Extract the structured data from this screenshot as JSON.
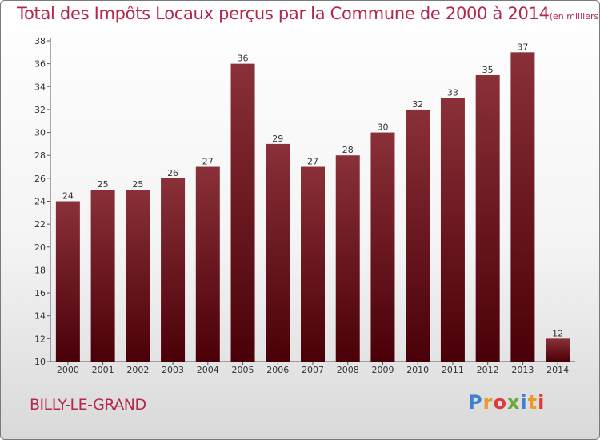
{
  "title": "Total des Impôts Locaux perçus par la Commune de 2000 à 2014",
  "unit": "(en milliers d'€)",
  "commune": "BILLY-LE-GRAND",
  "logo": {
    "letters": [
      "P",
      "r",
      "o",
      "x",
      "i",
      "t",
      "i"
    ],
    "colors": [
      "#3f7fd0",
      "#e89a2a",
      "#e03a3a",
      "#6aa83a",
      "#3f7fd0",
      "#e89a2a",
      "#e03a3a"
    ]
  },
  "colors": {
    "bar_top": "#8a3038",
    "bar_bottom": "#4a0008",
    "title": "#b5284b"
  },
  "chart_data": {
    "type": "bar",
    "title": "Total des Impôts Locaux perçus par la Commune de 2000 à 2014",
    "xlabel": "",
    "ylabel": "",
    "categories": [
      "2000",
      "2001",
      "2002",
      "2003",
      "2004",
      "2005",
      "2006",
      "2007",
      "2008",
      "2009",
      "2010",
      "2011",
      "2012",
      "2013",
      "2014"
    ],
    "values": [
      24,
      25,
      25,
      26,
      27,
      36,
      29,
      27,
      28,
      30,
      32,
      33,
      35,
      37,
      12
    ],
    "ylim": [
      10,
      38
    ],
    "yticks": [
      10,
      12,
      14,
      16,
      18,
      20,
      22,
      24,
      26,
      28,
      30,
      32,
      34,
      36,
      38
    ],
    "grid": false
  }
}
